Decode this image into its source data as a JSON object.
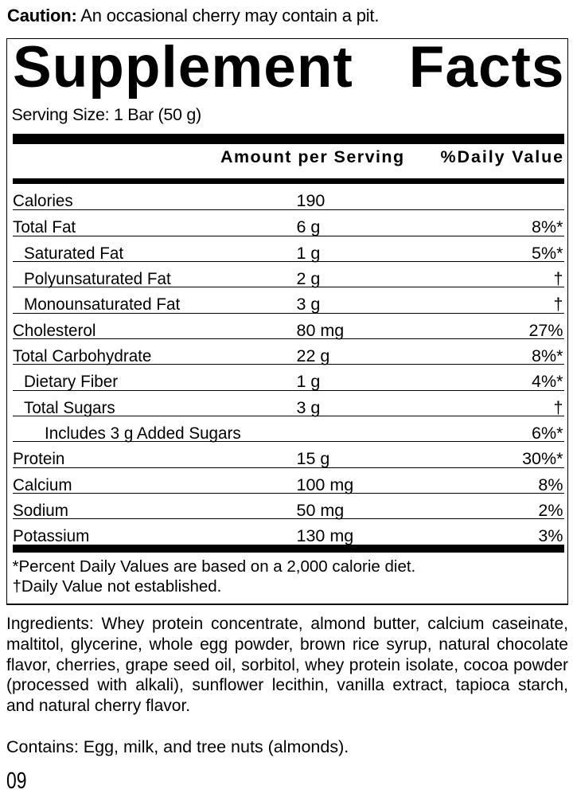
{
  "caution": {
    "label": "Caution:",
    "text": " An occasional cherry may contain a pit."
  },
  "panel": {
    "title_word1": "Supplement",
    "title_word2": "Facts",
    "serving_size": "Serving Size: 1 Bar (50 g)",
    "columns": {
      "amount": "Amount per Serving",
      "daily_value": "%Daily Value"
    },
    "rows": [
      {
        "label": "Calories",
        "amount": "190",
        "dv": "",
        "indent": 0
      },
      {
        "label": "Total Fat",
        "amount": "6 g",
        "dv": "8%*",
        "indent": 0
      },
      {
        "label": "Saturated Fat",
        "amount": "1 g",
        "dv": "5%*",
        "indent": 1
      },
      {
        "label": "Polyunsaturated Fat",
        "amount": "2 g",
        "dv": "†",
        "indent": 1
      },
      {
        "label": "Monounsaturated Fat",
        "amount": "3 g",
        "dv": "†",
        "indent": 1
      },
      {
        "label": "Cholesterol",
        "amount": "80 mg",
        "dv": "27%",
        "indent": 0
      },
      {
        "label": "Total Carbohydrate",
        "amount": "22 g",
        "dv": "8%*",
        "indent": 0
      },
      {
        "label": "Dietary Fiber",
        "amount": "1 g",
        "dv": "4%*",
        "indent": 1
      },
      {
        "label": "Total Sugars",
        "amount": "3 g",
        "dv": "†",
        "indent": 1
      },
      {
        "label": "Includes 3 g Added Sugars",
        "amount": "",
        "dv": "6%*",
        "indent": 2
      },
      {
        "label": "Protein",
        "amount": "15 g",
        "dv": "30%*",
        "indent": 0
      },
      {
        "label": "Calcium",
        "amount": "100 mg",
        "dv": "8%",
        "indent": 0
      },
      {
        "label": "Sodium",
        "amount": "50 mg",
        "dv": "2%",
        "indent": 0
      },
      {
        "label": "Potassium",
        "amount": "130 mg",
        "dv": "3%",
        "indent": 0
      }
    ],
    "footnotes": [
      "*Percent Daily Values are based on a 2,000 calorie diet.",
      "†Daily Value not established."
    ]
  },
  "ingredients": {
    "lines": [
      "Ingredients: Whey protein concentrate, almond butter, calcium caseinate,",
      "maltitol, glycerine, whole egg powder, brown rice syrup, natural chocolate",
      "flavor, cherries, grape seed oil, sorbitol, whey protein isolate, cocoa powder",
      "(processed with alkali), sunflower lecithin, vanilla extract, tapioca starch,",
      "and natural cherry flavor."
    ]
  },
  "contains": "Contains: Egg, milk, and tree nuts (almonds).",
  "code": "09",
  "colors": {
    "ink": "#000000",
    "paper": "#ffffff"
  }
}
